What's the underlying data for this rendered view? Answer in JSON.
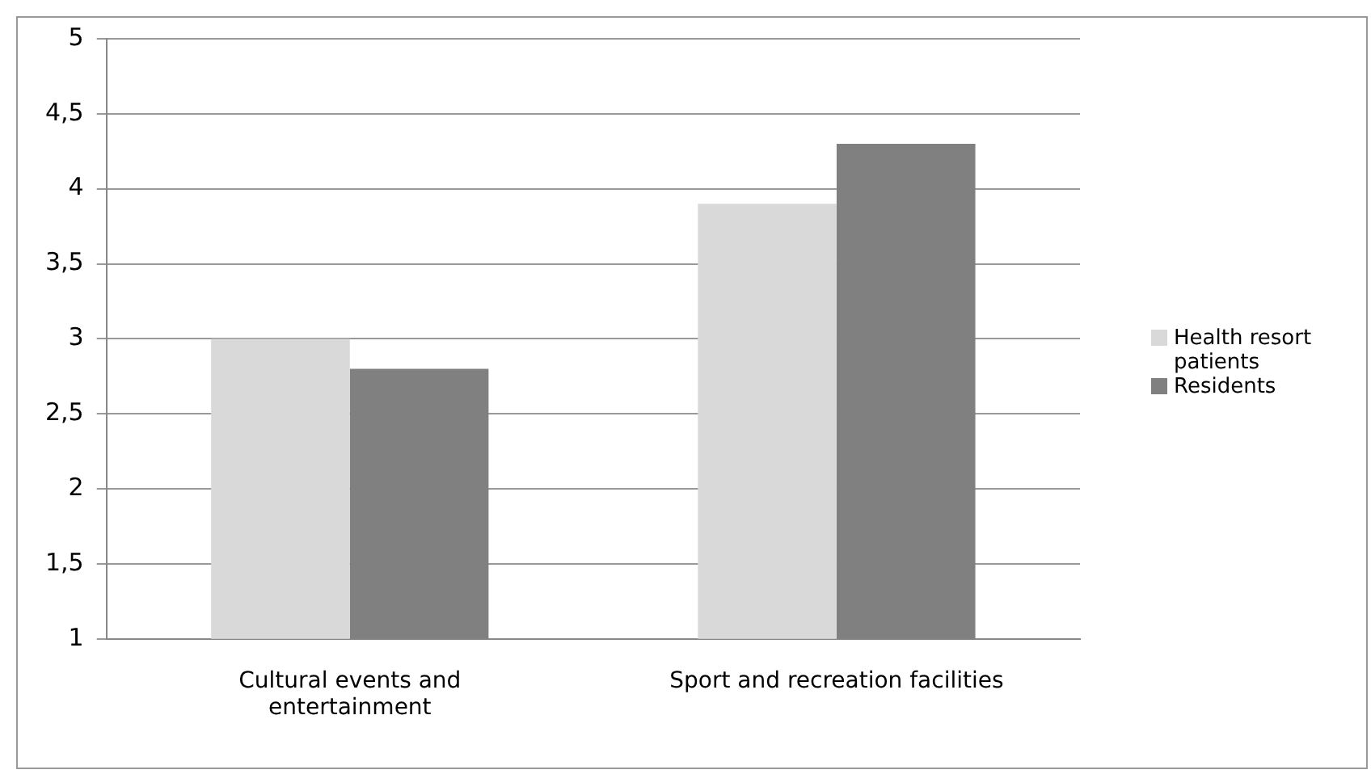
{
  "chart_data": {
    "type": "bar",
    "categories": [
      "Cultural events and entertainment",
      "Sport and recreation facilities"
    ],
    "series": [
      {
        "name": "Health resort patients",
        "color": "#d9d9d9",
        "values": [
          3.0,
          3.9
        ]
      },
      {
        "name": "Residents",
        "color": "#808080",
        "values": [
          2.8,
          4.3
        ]
      }
    ],
    "ylim": [
      1,
      5
    ],
    "yticks": [
      1,
      {
        "value": 1.5,
        "label": "1,5"
      },
      2,
      {
        "value": 2.5,
        "label": "2,5"
      },
      3,
      {
        "value": 3.5,
        "label": "3,5"
      },
      4,
      {
        "value": 4.5,
        "label": "4,5"
      },
      5
    ],
    "grid": "y",
    "legend": "right"
  }
}
